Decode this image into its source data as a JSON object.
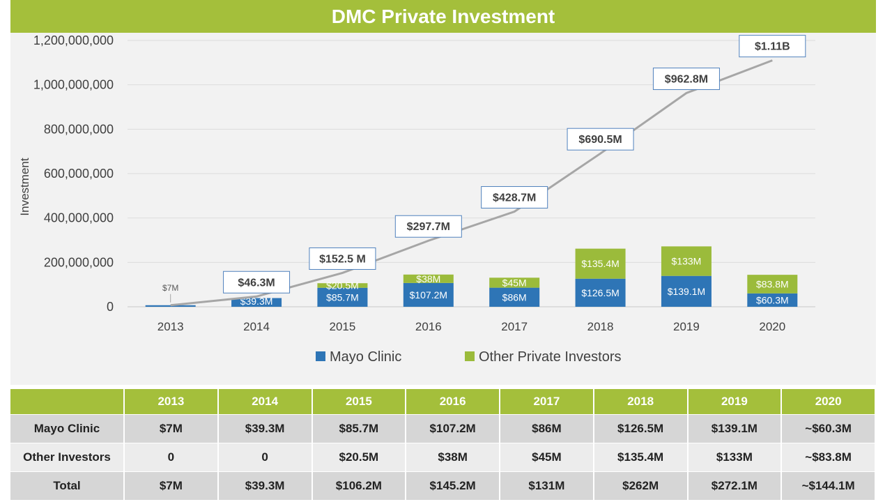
{
  "title": "DMC Private Investment",
  "colors": {
    "accent": "#a4bf3b",
    "mayo": "#2e75b6",
    "other": "#9bbb3b",
    "total_line": "#a6a6a6"
  },
  "chart_data": {
    "type": "bar",
    "stacked": true,
    "categories": [
      "2013",
      "2014",
      "2015",
      "2016",
      "2017",
      "2018",
      "2019",
      "2020"
    ],
    "ylabel": "Investment",
    "ylim": [
      0,
      1200000000
    ],
    "yticks": [
      "0",
      "200,000,000",
      "400,000,000",
      "600,000,000",
      "800,000,000",
      "1,000,000,000",
      "1,200,000,000"
    ],
    "ytick_values": [
      0,
      200000000,
      400000000,
      600000000,
      800000000,
      1000000000,
      1200000000
    ],
    "series": [
      {
        "name": "Mayo Clinic",
        "values": [
          7000000,
          39300000,
          85700000,
          107200000,
          86000000,
          126500000,
          139100000,
          60300000
        ],
        "labels": [
          "",
          "$39.3M",
          "$85.7M",
          "$107.2M",
          "$86M",
          "$126.5M",
          "$139.1M",
          "$60.3M"
        ]
      },
      {
        "name": "Other Private Investors",
        "values": [
          0,
          0,
          20500000,
          38000000,
          45000000,
          135400000,
          133000000,
          83800000
        ],
        "labels": [
          "",
          "",
          "$20.5M",
          "$38M",
          "$45M",
          "$135.4M",
          "$133M",
          "$83.8M"
        ]
      }
    ],
    "cumulative_line": {
      "values": [
        7000000,
        46300000,
        152500000,
        297700000,
        428700000,
        690500000,
        962800000,
        1110000000
      ],
      "labels": [
        "$7M",
        "$46.3M",
        "$152.5 M",
        "$297.7M",
        "$428.7M",
        "$690.5M",
        "$962.8M",
        "$1.11B"
      ]
    },
    "grid": true,
    "legend_position": "bottom"
  },
  "table": {
    "headers": [
      "",
      "2013",
      "2014",
      "2015",
      "2016",
      "2017",
      "2018",
      "2019",
      "2020"
    ],
    "rows": [
      [
        "Mayo Clinic",
        "$7M",
        "$39.3M",
        "$85.7M",
        "$107.2M",
        "$86M",
        "$126.5M",
        "$139.1M",
        "~$60.3M"
      ],
      [
        "Other Investors",
        "0",
        "0",
        "$20.5M",
        "$38M",
        "$45M",
        "$135.4M",
        "$133M",
        "~$83.8M"
      ],
      [
        "Total",
        "$7M",
        "$39.3M",
        "$106.2M",
        "$145.2M",
        "$131M",
        "$262M",
        "$272.1M",
        "~$144.1M"
      ]
    ]
  }
}
